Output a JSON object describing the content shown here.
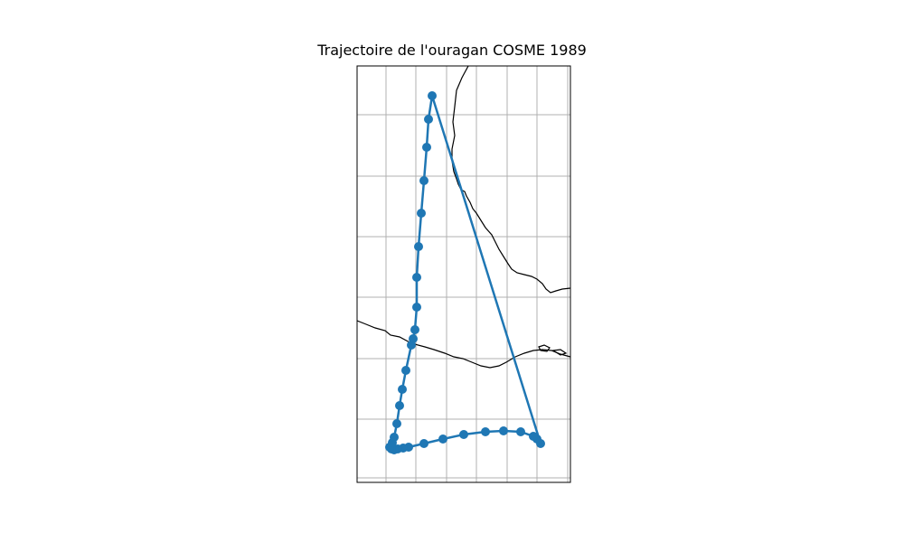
{
  "title": "Trajectoire de l'ouragan COSME 1989",
  "colors": {
    "track": "#1f77b4",
    "coast": "#000000",
    "grid": "#b0b0b0",
    "frame": "#000000"
  },
  "map": {
    "projection": "PlateCarree",
    "grid": true,
    "coastlines": true
  }
}
